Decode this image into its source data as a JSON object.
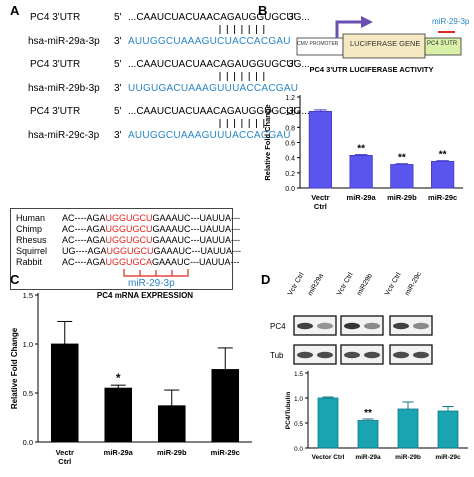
{
  "panels": {
    "A": {
      "letter": "A",
      "alignments": [
        {
          "target_label": "PC4 3'UTR",
          "target_prefix": "5'",
          "target_seq": "...CAAUCUACUAACAGAUGGUGCUG...",
          "target_suffix": "3'",
          "mirna_label": "hsa-miR-29a-3p",
          "mirna_prefix": "3'",
          "mirna_seq": "AUUGGCUAAAGUCUACCACGAU",
          "mirna_suffix": "5'"
        },
        {
          "target_label": "PC4 3'UTR",
          "target_prefix": "5'",
          "target_seq": "...CAAUCUACUAACAGAUGGUGCUG...",
          "target_suffix": "3'",
          "mirna_label": "hsa-miR-29b-3p",
          "mirna_prefix": "3'",
          "mirna_seq": "UUGUGACUAAAGUUUACCACGAU",
          "mirna_suffix": "5'"
        },
        {
          "target_label": "PC4 3'UTR",
          "target_prefix": "5'",
          "target_seq": "...CAAUCUACUAACAGAUGGUGCUG...",
          "target_suffix": "3'",
          "mirna_label": "hsa-miR-29c-3p",
          "mirna_prefix": "3'",
          "mirna_seq": "AUUGGCUAAAGUUUACCACGAU",
          "mirna_suffix": "5'"
        }
      ],
      "conservation": [
        {
          "species": "Human",
          "pre": "AC----AGA",
          "seed": "UGGUGCU",
          "post": "GAAAUC---UAUUA---"
        },
        {
          "species": "Chimp",
          "pre": "AC----AGA",
          "seed": "UGGUGCU",
          "post": "GAAAUC---UAUUA---"
        },
        {
          "species": "Rhesus",
          "pre": "AC----AGA",
          "seed": "UGGUGCU",
          "post": "GAAAUC---UAUUA---"
        },
        {
          "species": "Squirrel",
          "pre": "UG----AGA",
          "seed": "UGGUGCU",
          "post": "GAAAUC---UAUUA---"
        },
        {
          "species": "Rabbit",
          "pre": "AC----AGA",
          "seed": "UGGUGCA",
          "post": "GAAAUC---UAUUA---"
        }
      ],
      "seed_label": "miR-29-3p"
    },
    "B": {
      "letter": "B",
      "construct": {
        "promoter": "CMV PROMOTER",
        "gene": "LUCIFERASE  GENE",
        "utr": "PC4 3'UTR",
        "site": "miR-29-3p"
      },
      "colors": {
        "bar": "#5b55f0",
        "bar_edge": "#3f39c8",
        "gene_box": "#f4e9c2",
        "utr_box": "#d8f0a8",
        "arrow": "#6a4fb0",
        "site_line": "#e0261f"
      }
    },
    "C": {
      "letter": "C",
      "colors": {
        "bar": "#000000"
      }
    },
    "D": {
      "letter": "D",
      "blot_rows": [
        "PC4",
        "Tub"
      ],
      "lane_labels": [
        "Vctr Ctrl",
        "miR29a",
        "Vctr Ctrl",
        "miR29b",
        "Vctr Ctrl",
        "miR-29c"
      ],
      "colors": {
        "bar": "#1aa3b0",
        "bar_edge": "#127a85"
      }
    }
  },
  "chart_data": [
    {
      "panel": "B",
      "type": "bar",
      "title": "PC4  3'UTR  LUCIFERASE  ACTIVITY",
      "xlabel": "",
      "ylabel": "Relative Fold Change",
      "categories": [
        "Vectr Ctrl",
        "miR-29a",
        "miR-29b",
        "miR-29c"
      ],
      "values": [
        1.01,
        0.43,
        0.31,
        0.35
      ],
      "errors": [
        0.02,
        0.01,
        0.01,
        0.01
      ],
      "annotations": [
        "",
        "**",
        "**",
        "**"
      ],
      "ylim": [
        0.0,
        1.2
      ],
      "yticks": [
        "0.0",
        "0.2",
        "0.4",
        "0.6",
        "0.8",
        "1.0",
        "1.2"
      ]
    },
    {
      "panel": "C",
      "type": "bar",
      "title": "PC4 mRNA EXPRESSION",
      "xlabel": "",
      "ylabel": "Relative Fold Change",
      "categories": [
        "Vectr Ctrl",
        "miR-29a",
        "miR-29b",
        "miR-29c"
      ],
      "values": [
        1.0,
        0.55,
        0.37,
        0.74
      ],
      "errors": [
        0.23,
        0.03,
        0.16,
        0.22
      ],
      "annotations": [
        "",
        "*",
        "",
        ""
      ],
      "ylim": [
        0.0,
        1.5
      ],
      "yticks": [
        "0.0",
        "0.5",
        "1.0",
        "1.5"
      ]
    },
    {
      "panel": "D",
      "type": "bar",
      "title": "",
      "xlabel": "",
      "ylabel": "PC4/Tubulin",
      "categories": [
        "Vector Ctrl",
        "miR-29a",
        "miR-29b",
        "miR-29c"
      ],
      "values": [
        1.0,
        0.55,
        0.78,
        0.74
      ],
      "errors": [
        0.02,
        0.03,
        0.14,
        0.09
      ],
      "annotations": [
        "",
        "**",
        "",
        ""
      ],
      "ylim": [
        0.0,
        1.5
      ],
      "yticks": [
        "0.0",
        "0.5",
        "1.0",
        "1.5"
      ]
    }
  ]
}
